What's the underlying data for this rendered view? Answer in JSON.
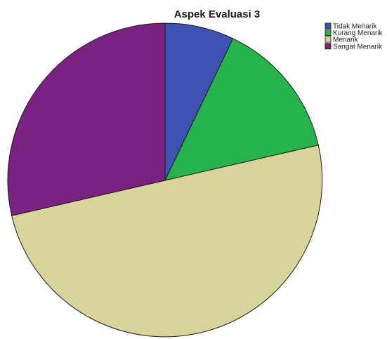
{
  "chart_data": {
    "type": "pie",
    "title": "Aspek Evaluasi 3",
    "categories": [
      "Tidak Menarik",
      "Kurang Menarik",
      "Menarik",
      "Sangat Menarik"
    ],
    "values": [
      7.1,
      14.3,
      50.0,
      28.6
    ],
    "colors": [
      "#3f51b1",
      "#26b24c",
      "#d9d39c",
      "#7b2182"
    ],
    "start_angle_deg": 0,
    "direction": "clockwise",
    "legend_position": "top-right"
  }
}
